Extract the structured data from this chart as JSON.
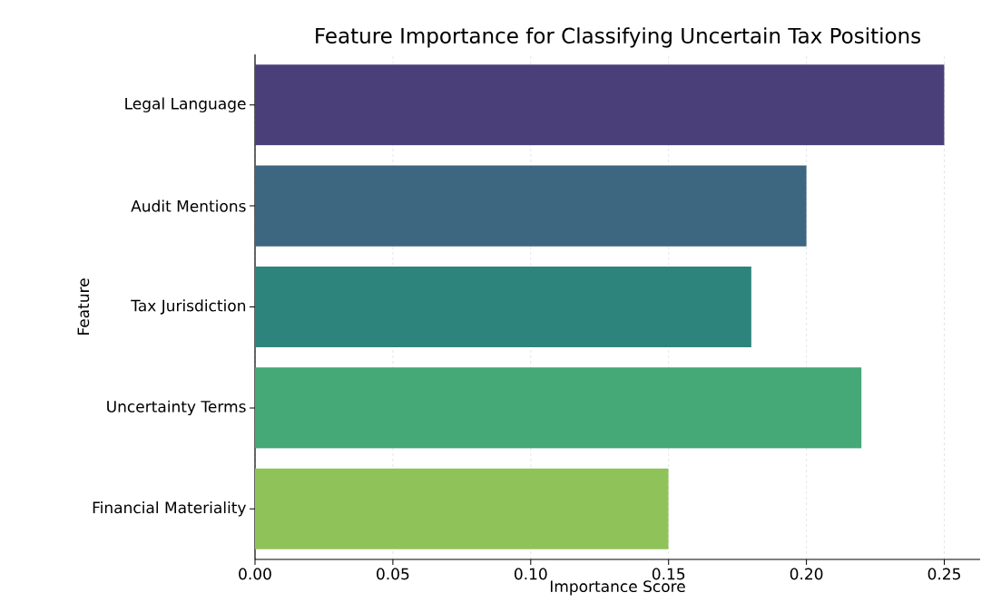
{
  "chart_data": {
    "type": "bar",
    "orientation": "horizontal",
    "title": "Feature Importance for Classifying Uncertain Tax Positions",
    "xlabel": "Importance Score",
    "ylabel": "Feature",
    "categories": [
      "Legal Language",
      "Audit Mentions",
      "Tax Jurisdiction",
      "Uncertainty Terms",
      "Financial Materiality"
    ],
    "values": [
      0.25,
      0.2,
      0.18,
      0.22,
      0.15
    ],
    "colors": [
      "#4b3f79",
      "#3d6680",
      "#2d847d",
      "#44a877",
      "#8fc359"
    ],
    "xlim": [
      0,
      0.263
    ],
    "xticks": [
      {
        "value": 0,
        "label": "0.00"
      },
      {
        "value": 0.05,
        "label": "0.05"
      },
      {
        "value": 0.1,
        "label": "0.10"
      },
      {
        "value": 0.15,
        "label": "0.15"
      },
      {
        "value": 0.2,
        "label": "0.20"
      },
      {
        "value": 0.25,
        "label": "0.25"
      }
    ],
    "grid": "x"
  }
}
